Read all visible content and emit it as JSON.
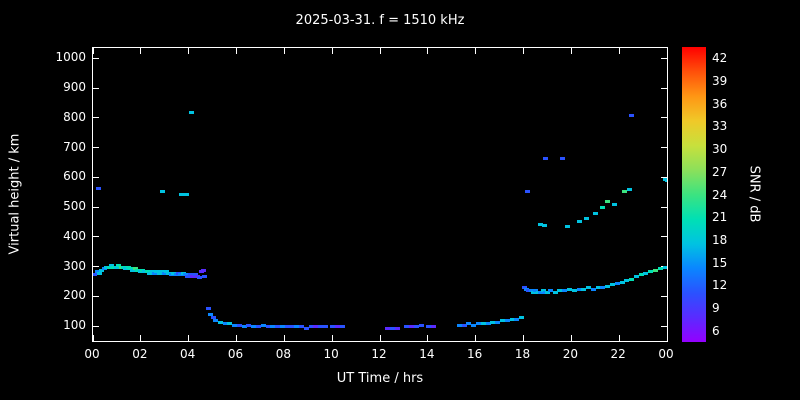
{
  "chart_data": {
    "type": "scatter",
    "title": "2025-03-31. f = 1510 kHz",
    "xlabel": "UT Time / hrs",
    "ylabel": "Virtual height / km",
    "colorbar_label": "SNR / dB",
    "xlim": [
      0,
      24
    ],
    "ylim": [
      50,
      1035
    ],
    "x_ticks": [
      0,
      2,
      4,
      6,
      8,
      10,
      12,
      14,
      16,
      18,
      20,
      22,
      24
    ],
    "x_tick_labels": [
      "00",
      "02",
      "04",
      "06",
      "08",
      "10",
      "12",
      "14",
      "16",
      "18",
      "20",
      "22",
      "00"
    ],
    "y_ticks": [
      100,
      200,
      300,
      400,
      500,
      600,
      700,
      800,
      900,
      1000
    ],
    "snr_ticks": [
      42,
      39,
      36,
      33,
      30,
      27,
      24,
      21,
      18,
      15,
      12,
      9,
      6
    ],
    "palette": {
      "6": "#9400ff",
      "9": "#5a2bff",
      "12": "#2a52ff",
      "15": "#0a86ff",
      "18": "#00c3e1",
      "21": "#00e0b4",
      "24": "#3ce380",
      "27": "#8ce05a",
      "30": "#c8e03c",
      "33": "#f0c828",
      "36": "#ff9614",
      "39": "#ff500a",
      "42": "#ff0000"
    },
    "points": [
      [
        0.05,
        275,
        12
      ],
      [
        0.15,
        285,
        15
      ],
      [
        0.25,
        280,
        18
      ],
      [
        0.35,
        290,
        18
      ],
      [
        0.45,
        295,
        15
      ],
      [
        0.55,
        300,
        18
      ],
      [
        0.65,
        300,
        21
      ],
      [
        0.75,
        305,
        18
      ],
      [
        0.85,
        300,
        21
      ],
      [
        0.95,
        300,
        18
      ],
      [
        1.05,
        305,
        21
      ],
      [
        1.15,
        300,
        24
      ],
      [
        1.25,
        300,
        21
      ],
      [
        1.35,
        295,
        18
      ],
      [
        1.45,
        300,
        21
      ],
      [
        1.55,
        295,
        21
      ],
      [
        1.65,
        290,
        18
      ],
      [
        1.75,
        295,
        24
      ],
      [
        1.85,
        290,
        21
      ],
      [
        1.95,
        285,
        18
      ],
      [
        2.05,
        290,
        21
      ],
      [
        2.15,
        285,
        18
      ],
      [
        2.25,
        285,
        21
      ],
      [
        2.35,
        280,
        18
      ],
      [
        2.45,
        285,
        18
      ],
      [
        2.55,
        280,
        15
      ],
      [
        2.65,
        285,
        18
      ],
      [
        2.75,
        280,
        18
      ],
      [
        2.85,
        285,
        18
      ],
      [
        2.95,
        280,
        15
      ],
      [
        3.05,
        285,
        18
      ],
      [
        3.15,
        280,
        18
      ],
      [
        3.25,
        275,
        15
      ],
      [
        3.35,
        280,
        18
      ],
      [
        3.45,
        275,
        15
      ],
      [
        3.55,
        280,
        12
      ],
      [
        3.65,
        275,
        15
      ],
      [
        3.75,
        280,
        18
      ],
      [
        3.85,
        275,
        15
      ],
      [
        3.95,
        270,
        12
      ],
      [
        4.05,
        275,
        12
      ],
      [
        4.15,
        270,
        9
      ],
      [
        4.25,
        275,
        12
      ],
      [
        4.35,
        270,
        9
      ],
      [
        4.45,
        265,
        12
      ],
      [
        4.5,
        285,
        9
      ],
      [
        4.6,
        290,
        9
      ],
      [
        4.65,
        270,
        12
      ],
      [
        4.8,
        160,
        12
      ],
      [
        4.9,
        140,
        15
      ],
      [
        5.0,
        130,
        12
      ],
      [
        5.1,
        120,
        15
      ],
      [
        5.3,
        115,
        18
      ],
      [
        5.5,
        110,
        15
      ],
      [
        5.7,
        110,
        18
      ],
      [
        5.9,
        105,
        15
      ],
      [
        6.1,
        105,
        12
      ],
      [
        6.3,
        100,
        15
      ],
      [
        6.5,
        105,
        12
      ],
      [
        6.7,
        100,
        15
      ],
      [
        6.9,
        100,
        12
      ],
      [
        7.1,
        105,
        15
      ],
      [
        7.3,
        100,
        12
      ],
      [
        7.5,
        100,
        15
      ],
      [
        7.7,
        100,
        12
      ],
      [
        7.9,
        100,
        15
      ],
      [
        8.1,
        100,
        12
      ],
      [
        8.3,
        100,
        12
      ],
      [
        8.5,
        100,
        15
      ],
      [
        8.7,
        100,
        12
      ],
      [
        8.9,
        95,
        12
      ],
      [
        9.1,
        100,
        12
      ],
      [
        9.3,
        100,
        9
      ],
      [
        9.5,
        100,
        12
      ],
      [
        9.7,
        100,
        12
      ],
      [
        10.0,
        100,
        12
      ],
      [
        10.2,
        100,
        9
      ],
      [
        10.4,
        100,
        12
      ],
      [
        12.3,
        95,
        9
      ],
      [
        12.5,
        95,
        12
      ],
      [
        12.7,
        95,
        9
      ],
      [
        13.1,
        100,
        12
      ],
      [
        13.3,
        100,
        9
      ],
      [
        13.5,
        100,
        12
      ],
      [
        13.7,
        105,
        12
      ],
      [
        14.0,
        100,
        12
      ],
      [
        14.2,
        100,
        9
      ],
      [
        15.3,
        105,
        15
      ],
      [
        15.5,
        105,
        12
      ],
      [
        15.7,
        110,
        15
      ],
      [
        15.9,
        105,
        15
      ],
      [
        16.1,
        110,
        15
      ],
      [
        16.3,
        110,
        18
      ],
      [
        16.5,
        110,
        15
      ],
      [
        16.7,
        115,
        18
      ],
      [
        16.9,
        115,
        15
      ],
      [
        17.1,
        120,
        18
      ],
      [
        17.3,
        120,
        15
      ],
      [
        17.5,
        125,
        18
      ],
      [
        17.7,
        125,
        15
      ],
      [
        17.9,
        130,
        18
      ],
      [
        18.0,
        230,
        12
      ],
      [
        18.1,
        225,
        15
      ],
      [
        18.2,
        220,
        12
      ],
      [
        18.3,
        220,
        15
      ],
      [
        18.4,
        215,
        18
      ],
      [
        18.5,
        220,
        15
      ],
      [
        18.6,
        215,
        18
      ],
      [
        18.7,
        215,
        15
      ],
      [
        18.8,
        220,
        18
      ],
      [
        18.9,
        215,
        15
      ],
      [
        19.0,
        215,
        18
      ],
      [
        19.1,
        220,
        15
      ],
      [
        19.3,
        215,
        18
      ],
      [
        19.5,
        220,
        18
      ],
      [
        19.7,
        220,
        15
      ],
      [
        19.9,
        225,
        18
      ],
      [
        20.1,
        220,
        18
      ],
      [
        20.3,
        225,
        15
      ],
      [
        20.5,
        225,
        18
      ],
      [
        20.7,
        230,
        18
      ],
      [
        20.9,
        225,
        15
      ],
      [
        21.1,
        230,
        18
      ],
      [
        21.3,
        230,
        15
      ],
      [
        21.5,
        235,
        18
      ],
      [
        21.7,
        240,
        18
      ],
      [
        21.9,
        245,
        15
      ],
      [
        22.1,
        250,
        18
      ],
      [
        22.3,
        255,
        18
      ],
      [
        22.5,
        260,
        21
      ],
      [
        22.7,
        270,
        18
      ],
      [
        22.9,
        275,
        21
      ],
      [
        23.1,
        280,
        18
      ],
      [
        23.3,
        285,
        21
      ],
      [
        23.5,
        290,
        24
      ],
      [
        23.7,
        295,
        21
      ],
      [
        23.9,
        300,
        18
      ],
      [
        0.2,
        565,
        12
      ],
      [
        2.9,
        555,
        18
      ],
      [
        3.7,
        545,
        18
      ],
      [
        3.9,
        545,
        18
      ],
      [
        4.1,
        820,
        18
      ],
      [
        18.15,
        555,
        12
      ],
      [
        18.9,
        665,
        12
      ],
      [
        19.6,
        665,
        12
      ],
      [
        18.7,
        445,
        18
      ],
      [
        18.85,
        440,
        18
      ],
      [
        19.8,
        435,
        18
      ],
      [
        20.3,
        455,
        18
      ],
      [
        20.6,
        465,
        18
      ],
      [
        21.0,
        480,
        18
      ],
      [
        21.3,
        500,
        21
      ],
      [
        21.5,
        520,
        24
      ],
      [
        21.8,
        510,
        18
      ],
      [
        22.2,
        555,
        24
      ],
      [
        22.4,
        560,
        18
      ],
      [
        22.5,
        810,
        12
      ],
      [
        23.9,
        595,
        18
      ],
      [
        24.0,
        590,
        18
      ]
    ]
  }
}
